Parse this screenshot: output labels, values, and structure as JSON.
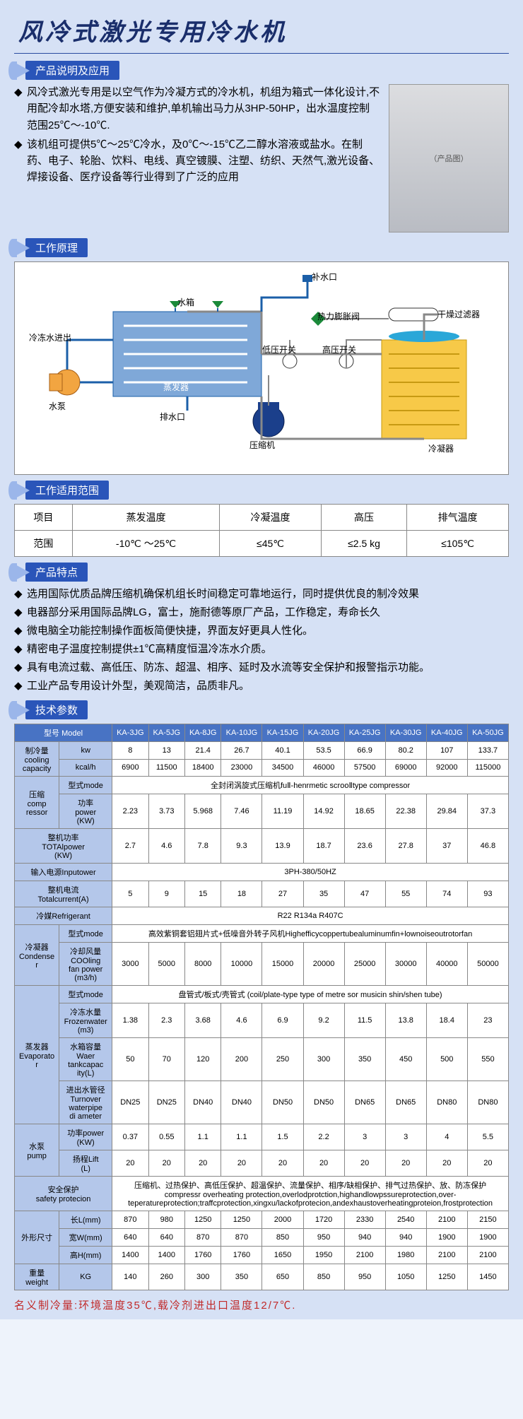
{
  "title": "风冷式激光专用冷水机",
  "sections": {
    "intro": "产品说明及应用",
    "principle": "工作原理",
    "scope": "工作适用范围",
    "features": "产品特点",
    "specs": "技术参数"
  },
  "intro_paras": [
    "风冷式激光专用是以空气作为冷凝方式的冷水机，机组为箱式一体化设计,不用配冷却水塔,方便安装和维护,单机输出马力从3HP-50HP，出水温度控制范围25℃～-10℃.",
    "该机组可提供5℃～25℃冷水，及0℃～-15℃乙二醇水溶液或盐水。在制药、电子、轮胎、饮料、电线、真空镀膜、注塑、纺织、天然气,激光设备、焊接设备、医疗设备等行业得到了广泛的应用"
  ],
  "diagram_labels": {
    "bushuikou": "补水口",
    "shuixiang": "水箱",
    "lengdongjinchu": "冷冻水进出",
    "shuibeng": "水泵",
    "zhengfaqi": "蒸发器",
    "paishuikou": "排水口",
    "yasuoji": "压缩机",
    "diyakaiguan": "低压开关",
    "gaoyakaiguan": "高压开关",
    "relipengzhangfa": "热力膨胀阀",
    "ganzaoguolvqi": "干燥过滤器",
    "lengningqi": "冷凝器"
  },
  "scope": {
    "headers": [
      "项目",
      "蒸发温度",
      "冷凝温度",
      "高压",
      "排气温度"
    ],
    "row": [
      "范围",
      "-10℃ ～25℃",
      "≤45℃",
      "≤2.5 kg",
      "≤105℃"
    ]
  },
  "features_list": [
    "选用国际优质品牌压缩机确保机组长时间稳定可靠地运行，同时提供优良的制冷效果",
    "电器部分采用国际品牌LG，富士，施耐德等原厂产品，工作稳定，寿命长久",
    "微电脑全功能控制操作面板简便快捷，界面友好更具人性化。",
    "精密电子温度控制提供±1℃高精度恒温冷冻水介质。",
    "具有电流过载、高低压、防冻、超温、相序、延时及水流等安全保护和报警指示功能。",
    "工业产品专用设计外型，美观简洁，品质非凡。"
  ],
  "spec": {
    "models": [
      "KA-3JG",
      "KA-5JG",
      "KA-8JG",
      "KA-10JG",
      "KA-15JG",
      "KA-20JG",
      "KA-25JG",
      "KA-30JG",
      "KA-40JG",
      "KA-50JG"
    ],
    "rows": [
      {
        "group": "制冷量\ncooling\ncapacity",
        "label": "kw",
        "vals": [
          "8",
          "13",
          "21.4",
          "26.7",
          "40.1",
          "53.5",
          "66.9",
          "80.2",
          "107",
          "133.7"
        ]
      },
      {
        "group": "",
        "label": "kcal/h",
        "vals": [
          "6900",
          "11500",
          "18400",
          "23000",
          "34500",
          "46000",
          "57500",
          "69000",
          "92000",
          "115000"
        ]
      },
      {
        "group": "压缩\ncomp\nressor",
        "label": "型式mode",
        "span": "全封闭涡旋式压缩机fuⅡ-henrmetic scrooⅡtype compressor"
      },
      {
        "group": "",
        "label": "功率\npower\n(KW)",
        "vals": [
          "2.23",
          "3.73",
          "5.968",
          "7.46",
          "11.19",
          "14.92",
          "18.65",
          "22.38",
          "29.84",
          "37.3"
        ]
      },
      {
        "group": "整机功率\nTOTAlpower\n(KW)",
        "label": "",
        "vals": [
          "2.7",
          "4.6",
          "7.8",
          "9.3",
          "13.9",
          "18.7",
          "23.6",
          "27.8",
          "37",
          "46.8"
        ],
        "full": true
      },
      {
        "group": "输入电源Inputower",
        "label": "",
        "span": "3PH-380/50HZ",
        "full": true
      },
      {
        "group": "整机电流\nTotalcurrent(A)",
        "label": "",
        "vals": [
          "5",
          "9",
          "15",
          "18",
          "27",
          "35",
          "47",
          "55",
          "74",
          "93"
        ],
        "full": true
      },
      {
        "group": "冷媒Refrigerant",
        "label": "",
        "span": "R22 R134a R407C",
        "full": true
      },
      {
        "group": "冷凝器\nCondense\nr",
        "label": "型式mode",
        "span": "高效紫铜套铝翅片式+低噪音外转子风机Highefficycoppertubealuminumfin+lownoiseoutrotorfan"
      },
      {
        "group": "",
        "label": "冷却风量\nCOOling\nfan power\n(m3/h)",
        "vals": [
          "3000",
          "5000",
          "8000",
          "10000",
          "15000",
          "20000",
          "25000",
          "30000",
          "40000",
          "50000"
        ]
      },
      {
        "group": "蒸发器\nEvaporato\nr",
        "label": "型式mode",
        "span": "盘管式/板式/壳管式 (coil/plate-type type of metre sor musicin shin/shen tube)"
      },
      {
        "group": "",
        "label": "冷冻水量\nFrozenwater\n(m3)",
        "vals": [
          "1.38",
          "2.3",
          "3.68",
          "4.6",
          "6.9",
          "9.2",
          "11.5",
          "13.8",
          "18.4",
          "23"
        ]
      },
      {
        "group": "",
        "label": "水箱容量\nWaer\ntankcapac\nity(L)",
        "vals": [
          "50",
          "70",
          "120",
          "200",
          "250",
          "300",
          "350",
          "450",
          "500",
          "550"
        ]
      },
      {
        "group": "",
        "label": "进出水管径\nTurnover\nwaterpipe\ndi ameter",
        "vals": [
          "DN25",
          "DN25",
          "DN40",
          "DN40",
          "DN50",
          "DN50",
          "DN65",
          "DN65",
          "DN80",
          "DN80"
        ]
      },
      {
        "group": "水泵\npump",
        "label": "功率power\n(KW)",
        "vals": [
          "0.37",
          "0.55",
          "1.1",
          "1.1",
          "1.5",
          "2.2",
          "3",
          "3",
          "4",
          "5.5"
        ]
      },
      {
        "group": "",
        "label": "扬程Lift\n(L)",
        "vals": [
          "20",
          "20",
          "20",
          "20",
          "20",
          "20",
          "20",
          "20",
          "20",
          "20"
        ]
      },
      {
        "group": "安全保护\nsafety protecion",
        "label": "",
        "span": "压缩机、过热保护、高低压保护、超温保护、流量保护、相序/缺相保护、排气过热保护、放、防冻保护\ncompressr overheating protection,overlodprotction,highandlowpssureprotection,over-\nteperatureprotection;traffcprotection,xingxu/lackofprotecion,andexhaustoverheatingproteion,frostprotection",
        "full": true
      },
      {
        "group": "外形尺寸",
        "label": "长L(mm)",
        "vals": [
          "870",
          "980",
          "1250",
          "1250",
          "2000",
          "1720",
          "2330",
          "2540",
          "2100",
          "2150"
        ]
      },
      {
        "group": "",
        "label": "宽W(mm)",
        "vals": [
          "640",
          "640",
          "870",
          "870",
          "850",
          "950",
          "940",
          "940",
          "1900",
          "1900"
        ]
      },
      {
        "group": "",
        "label": "高H(mm)",
        "vals": [
          "1400",
          "1400",
          "1760",
          "1760",
          "1650",
          "1950",
          "2100",
          "1980",
          "2100",
          "2100"
        ]
      },
      {
        "group": "重量\nweight",
        "label": "KG",
        "vals": [
          "140",
          "260",
          "300",
          "350",
          "650",
          "850",
          "950",
          "1050",
          "1250",
          "1450"
        ]
      }
    ],
    "model_header": "型号 Model"
  },
  "footnote": "名义制冷量:环境温度35℃,载冷剂进出口温度12/7℃.",
  "colors": {
    "page_bg": "#d6e1f5",
    "title": "#1a2e6b",
    "section_bg": "#2a55b9",
    "arrow": "#9bb6ea",
    "spec_header_bg": "#4873c4",
    "spec_label_bg": "#b4c7ea",
    "footnote": "#c12a2a",
    "diagram_evap": "#7fa8d8",
    "diagram_cond": "#f7c948",
    "diagram_pump": "#f2a541",
    "diagram_comp": "#1b3f8b"
  }
}
